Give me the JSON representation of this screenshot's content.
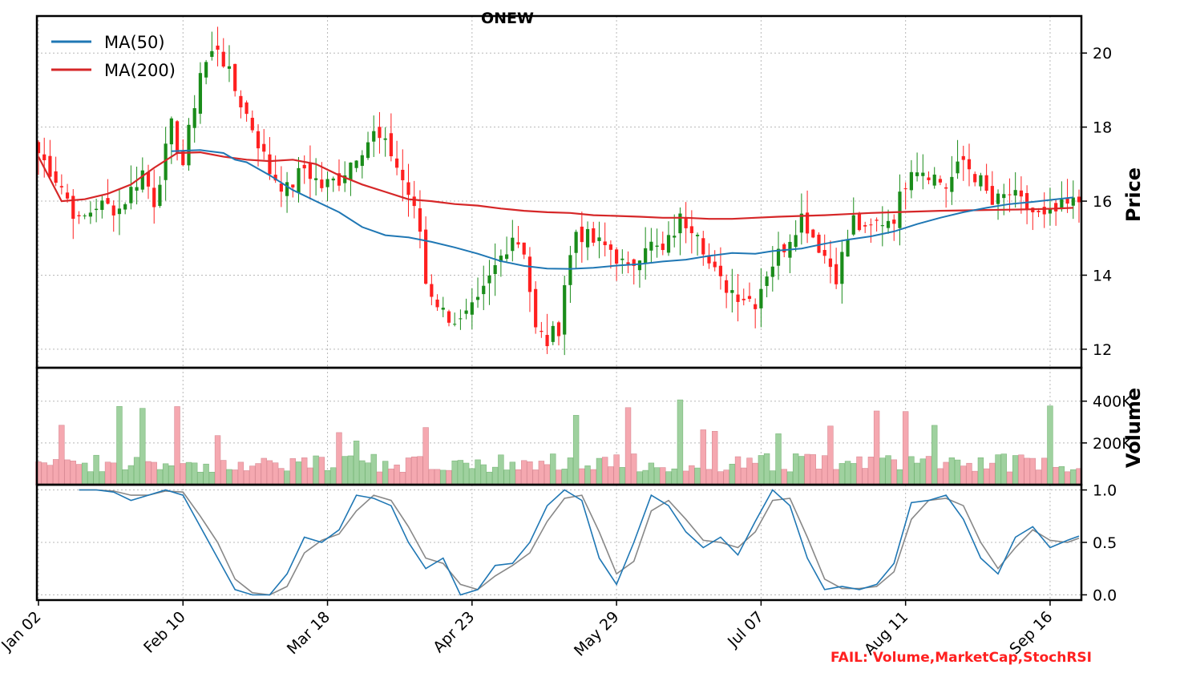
{
  "chart_data": {
    "type": "candlestick",
    "title": "ONEW",
    "ylabel_price": "Price",
    "ylabel_volume": "Volume",
    "x_tick_labels": [
      "Jan 02",
      "Feb 10",
      "Mar 18",
      "Apr 23",
      "May 29",
      "Jul 07",
      "Aug 11",
      "Sep 16"
    ],
    "price_ylim": [
      11.5,
      21.0
    ],
    "price_ticks": [
      12,
      14,
      16,
      18,
      20
    ],
    "volume_ylim": [
      0,
      560000
    ],
    "volume_ticks": [
      {
        "value": 200000,
        "label": "200K"
      },
      {
        "value": 400000,
        "label": "400K"
      }
    ],
    "stoch_ylim": [
      -0.05,
      1.05
    ],
    "stoch_ticks": [
      {
        "value": 0.0,
        "label": "0.0"
      },
      {
        "value": 0.5,
        "label": "0.5"
      },
      {
        "value": 1.0,
        "label": "1.0"
      }
    ],
    "legend": [
      {
        "label": "MA(50)",
        "color": "#1f77b4"
      },
      {
        "label": "MA(200)",
        "color": "#d62728"
      }
    ],
    "grid": true,
    "legend_position": "top-left",
    "ma50": [
      [
        23,
        17.35
      ],
      [
        28,
        17.38
      ],
      [
        32,
        17.3
      ],
      [
        34,
        17.12
      ],
      [
        36,
        17.05
      ],
      [
        40,
        16.7
      ],
      [
        44,
        16.3
      ],
      [
        48,
        16.0
      ],
      [
        52,
        15.7
      ],
      [
        56,
        15.3
      ],
      [
        60,
        15.08
      ],
      [
        64,
        15.02
      ],
      [
        68,
        14.9
      ],
      [
        72,
        14.75
      ],
      [
        76,
        14.58
      ],
      [
        80,
        14.38
      ],
      [
        84,
        14.25
      ],
      [
        88,
        14.18
      ],
      [
        92,
        14.17
      ],
      [
        96,
        14.2
      ],
      [
        100,
        14.26
      ],
      [
        104,
        14.3
      ],
      [
        108,
        14.37
      ],
      [
        112,
        14.42
      ],
      [
        116,
        14.52
      ],
      [
        120,
        14.6
      ],
      [
        124,
        14.58
      ],
      [
        127,
        14.65
      ],
      [
        132,
        14.72
      ],
      [
        136,
        14.85
      ],
      [
        140,
        14.96
      ],
      [
        144,
        15.05
      ],
      [
        148,
        15.18
      ],
      [
        152,
        15.38
      ],
      [
        156,
        15.55
      ],
      [
        160,
        15.7
      ],
      [
        164,
        15.82
      ],
      [
        168,
        15.92
      ],
      [
        172,
        15.98
      ],
      [
        176,
        16.05
      ],
      [
        179,
        16.1
      ]
    ],
    "ma200": [
      [
        0,
        17.2
      ],
      [
        4,
        16.0
      ],
      [
        8,
        16.05
      ],
      [
        12,
        16.2
      ],
      [
        16,
        16.45
      ],
      [
        20,
        16.9
      ],
      [
        24,
        17.3
      ],
      [
        28,
        17.32
      ],
      [
        32,
        17.2
      ],
      [
        36,
        17.12
      ],
      [
        40,
        17.08
      ],
      [
        44,
        17.12
      ],
      [
        48,
        17.0
      ],
      [
        52,
        16.7
      ],
      [
        56,
        16.45
      ],
      [
        60,
        16.25
      ],
      [
        64,
        16.05
      ],
      [
        68,
        16.0
      ],
      [
        72,
        15.92
      ],
      [
        76,
        15.88
      ],
      [
        80,
        15.8
      ],
      [
        84,
        15.74
      ],
      [
        88,
        15.7
      ],
      [
        92,
        15.68
      ],
      [
        96,
        15.62
      ],
      [
        100,
        15.6
      ],
      [
        104,
        15.58
      ],
      [
        108,
        15.55
      ],
      [
        112,
        15.55
      ],
      [
        116,
        15.52
      ],
      [
        120,
        15.52
      ],
      [
        124,
        15.55
      ],
      [
        128,
        15.58
      ],
      [
        132,
        15.6
      ],
      [
        136,
        15.62
      ],
      [
        140,
        15.65
      ],
      [
        144,
        15.68
      ],
      [
        148,
        15.7
      ],
      [
        152,
        15.72
      ],
      [
        156,
        15.74
      ],
      [
        160,
        15.75
      ],
      [
        164,
        15.76
      ],
      [
        168,
        15.77
      ],
      [
        172,
        15.78
      ],
      [
        176,
        15.8
      ],
      [
        179,
        15.82
      ]
    ],
    "stoch_k": [
      [
        7,
        1.0
      ],
      [
        10,
        1.0
      ],
      [
        13,
        0.98
      ],
      [
        16,
        0.9
      ],
      [
        19,
        0.95
      ],
      [
        22,
        1.0
      ],
      [
        25,
        0.95
      ],
      [
        28,
        0.65
      ],
      [
        31,
        0.35
      ],
      [
        34,
        0.05
      ],
      [
        37,
        0.0
      ],
      [
        40,
        0.0
      ],
      [
        43,
        0.2
      ],
      [
        46,
        0.55
      ],
      [
        49,
        0.5
      ],
      [
        52,
        0.62
      ],
      [
        55,
        0.95
      ],
      [
        58,
        0.92
      ],
      [
        61,
        0.85
      ],
      [
        64,
        0.5
      ],
      [
        67,
        0.25
      ],
      [
        70,
        0.35
      ],
      [
        73,
        0.0
      ],
      [
        76,
        0.05
      ],
      [
        79,
        0.28
      ],
      [
        82,
        0.3
      ],
      [
        85,
        0.5
      ],
      [
        88,
        0.85
      ],
      [
        91,
        1.0
      ],
      [
        94,
        0.9
      ],
      [
        97,
        0.35
      ],
      [
        100,
        0.1
      ],
      [
        103,
        0.5
      ],
      [
        106,
        0.95
      ],
      [
        109,
        0.85
      ],
      [
        112,
        0.6
      ],
      [
        115,
        0.45
      ],
      [
        118,
        0.55
      ],
      [
        121,
        0.38
      ],
      [
        124,
        0.7
      ],
      [
        127,
        1.0
      ],
      [
        130,
        0.85
      ],
      [
        133,
        0.35
      ],
      [
        136,
        0.05
      ],
      [
        139,
        0.08
      ],
      [
        142,
        0.05
      ],
      [
        145,
        0.1
      ],
      [
        148,
        0.3
      ],
      [
        151,
        0.88
      ],
      [
        154,
        0.9
      ],
      [
        157,
        0.95
      ],
      [
        160,
        0.72
      ],
      [
        163,
        0.35
      ],
      [
        166,
        0.2
      ],
      [
        169,
        0.55
      ],
      [
        172,
        0.65
      ],
      [
        175,
        0.45
      ],
      [
        178,
        0.52
      ],
      [
        180,
        0.56
      ]
    ],
    "stoch_d": [
      [
        7,
        1.0
      ],
      [
        10,
        1.0
      ],
      [
        13,
        0.99
      ],
      [
        16,
        0.95
      ],
      [
        19,
        0.95
      ],
      [
        22,
        0.99
      ],
      [
        25,
        0.98
      ],
      [
        28,
        0.75
      ],
      [
        31,
        0.5
      ],
      [
        34,
        0.15
      ],
      [
        37,
        0.02
      ],
      [
        40,
        0.0
      ],
      [
        43,
        0.08
      ],
      [
        46,
        0.4
      ],
      [
        49,
        0.52
      ],
      [
        52,
        0.58
      ],
      [
        55,
        0.8
      ],
      [
        58,
        0.95
      ],
      [
        61,
        0.9
      ],
      [
        64,
        0.65
      ],
      [
        67,
        0.35
      ],
      [
        70,
        0.3
      ],
      [
        73,
        0.1
      ],
      [
        76,
        0.05
      ],
      [
        79,
        0.18
      ],
      [
        82,
        0.28
      ],
      [
        85,
        0.4
      ],
      [
        88,
        0.7
      ],
      [
        91,
        0.92
      ],
      [
        94,
        0.95
      ],
      [
        97,
        0.6
      ],
      [
        100,
        0.2
      ],
      [
        103,
        0.32
      ],
      [
        106,
        0.8
      ],
      [
        109,
        0.9
      ],
      [
        112,
        0.72
      ],
      [
        115,
        0.52
      ],
      [
        118,
        0.5
      ],
      [
        121,
        0.45
      ],
      [
        124,
        0.6
      ],
      [
        127,
        0.9
      ],
      [
        130,
        0.92
      ],
      [
        133,
        0.55
      ],
      [
        136,
        0.15
      ],
      [
        139,
        0.06
      ],
      [
        142,
        0.06
      ],
      [
        145,
        0.08
      ],
      [
        148,
        0.22
      ],
      [
        151,
        0.72
      ],
      [
        154,
        0.9
      ],
      [
        157,
        0.92
      ],
      [
        160,
        0.85
      ],
      [
        163,
        0.5
      ],
      [
        166,
        0.25
      ],
      [
        169,
        0.45
      ],
      [
        172,
        0.62
      ],
      [
        175,
        0.52
      ],
      [
        178,
        0.5
      ],
      [
        180,
        0.54
      ]
    ]
  },
  "annotation": {
    "fail_text": "FAIL: Volume,MarketCap,StochRSI"
  },
  "colors": {
    "up": "#1a8c1a",
    "down": "#ff2020",
    "vol_up": "#9fd19f",
    "vol_down": "#f5a8b0",
    "stoch_k": "#1f77b4",
    "stoch_d": "#888888"
  }
}
